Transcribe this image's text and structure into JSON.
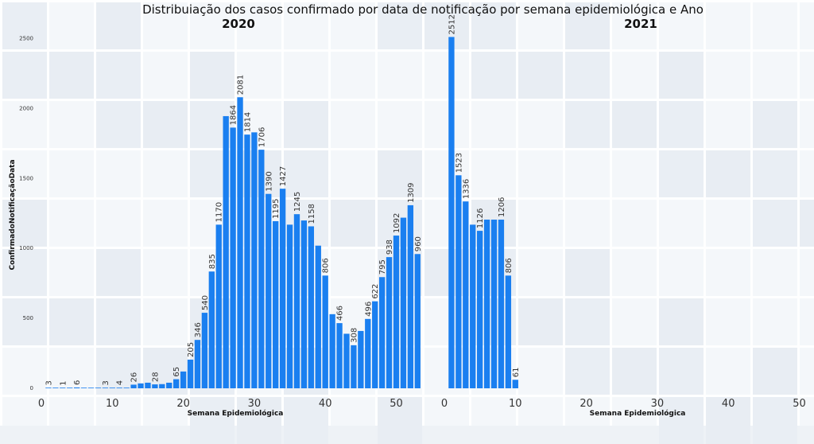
{
  "chart_data": {
    "type": "bar",
    "title": "Distribuiação dos casos confirmado por data de notificação por semana epidemiológica e Ano",
    "ylabel": "ConfirmadoNotificaçãoData",
    "ylim": [
      0,
      2600
    ],
    "yticks": [
      0,
      500,
      1000,
      1500,
      2000,
      2500
    ],
    "grid": false,
    "bar_color": "#1a7ff0",
    "panels": [
      {
        "year_label": "2020",
        "xlabel": "Semana Epidemiológica",
        "xlim": [
          0,
          55
        ],
        "xticks": [
          0,
          10,
          20,
          30,
          40,
          50
        ],
        "x": [
          1,
          2,
          3,
          4,
          5,
          6,
          7,
          8,
          9,
          10,
          11,
          12,
          13,
          14,
          15,
          16,
          17,
          18,
          19,
          20,
          21,
          22,
          23,
          24,
          25,
          26,
          27,
          28,
          29,
          30,
          31,
          32,
          33,
          34,
          35,
          36,
          37,
          38,
          39,
          40,
          41,
          42,
          43,
          44,
          45,
          46,
          47,
          48,
          49,
          50,
          51,
          52,
          53
        ],
        "values": [
          3,
          1,
          1,
          1,
          6,
          1,
          1,
          1,
          3,
          1,
          4,
          1,
          26,
          35,
          40,
          28,
          30,
          40,
          65,
          120,
          205,
          346,
          540,
          835,
          1170,
          1946,
          1864,
          2081,
          1814,
          1830,
          1706,
          1390,
          1195,
          1427,
          1170,
          1245,
          1200,
          1158,
          1020,
          806,
          530,
          466,
          390,
          308,
          410,
          496,
          622,
          795,
          938,
          1092,
          1220,
          1309,
          960
        ],
        "labels": [
          {
            "x": 1,
            "text": "3"
          },
          {
            "x": 3,
            "text": "1"
          },
          {
            "x": 5,
            "text": "6"
          },
          {
            "x": 9,
            "text": "3"
          },
          {
            "x": 11,
            "text": "4"
          },
          {
            "x": 13,
            "text": "26"
          },
          {
            "x": 16,
            "text": "28"
          },
          {
            "x": 19,
            "text": "65"
          },
          {
            "x": 21,
            "text": "205"
          },
          {
            "x": 22,
            "text": "346"
          },
          {
            "x": 23,
            "text": "540"
          },
          {
            "x": 24,
            "text": "835"
          },
          {
            "x": 25,
            "text": "1170"
          },
          {
            "x": 27,
            "text": "1864"
          },
          {
            "x": 28,
            "text": "2081"
          },
          {
            "x": 29,
            "text": "1814"
          },
          {
            "x": 31,
            "text": "1706"
          },
          {
            "x": 32,
            "text": "1390"
          },
          {
            "x": 33,
            "text": "1195"
          },
          {
            "x": 34,
            "text": "1427"
          },
          {
            "x": 36,
            "text": "1245"
          },
          {
            "x": 38,
            "text": "1158"
          },
          {
            "x": 40,
            "text": "806"
          },
          {
            "x": 42,
            "text": "466"
          },
          {
            "x": 44,
            "text": "308"
          },
          {
            "x": 46,
            "text": "496"
          },
          {
            "x": 47,
            "text": "622"
          },
          {
            "x": 48,
            "text": "795"
          },
          {
            "x": 49,
            "text": "938"
          },
          {
            "x": 50,
            "text": "1092"
          },
          {
            "x": 52,
            "text": "1309"
          },
          {
            "x": 53,
            "text": "960"
          }
        ]
      },
      {
        "year_label": "2021",
        "xlabel": "Semana Epidemiológica",
        "xlim": [
          0,
          55
        ],
        "xticks": [
          0,
          10,
          20,
          30,
          40,
          50
        ],
        "x": [
          1,
          2,
          3,
          4,
          5,
          6,
          7,
          8,
          9,
          10
        ],
        "values": [
          2512,
          1523,
          1336,
          1170,
          1126,
          1206,
          1206,
          1206,
          806,
          61
        ],
        "labels": [
          {
            "x": 1,
            "text": "2512"
          },
          {
            "x": 2,
            "text": "1523"
          },
          {
            "x": 3,
            "text": "1336"
          },
          {
            "x": 5,
            "text": "1126"
          },
          {
            "x": 8,
            "text": "1206"
          },
          {
            "x": 9,
            "text": "806"
          },
          {
            "x": 10,
            "text": "61"
          }
        ]
      }
    ]
  }
}
